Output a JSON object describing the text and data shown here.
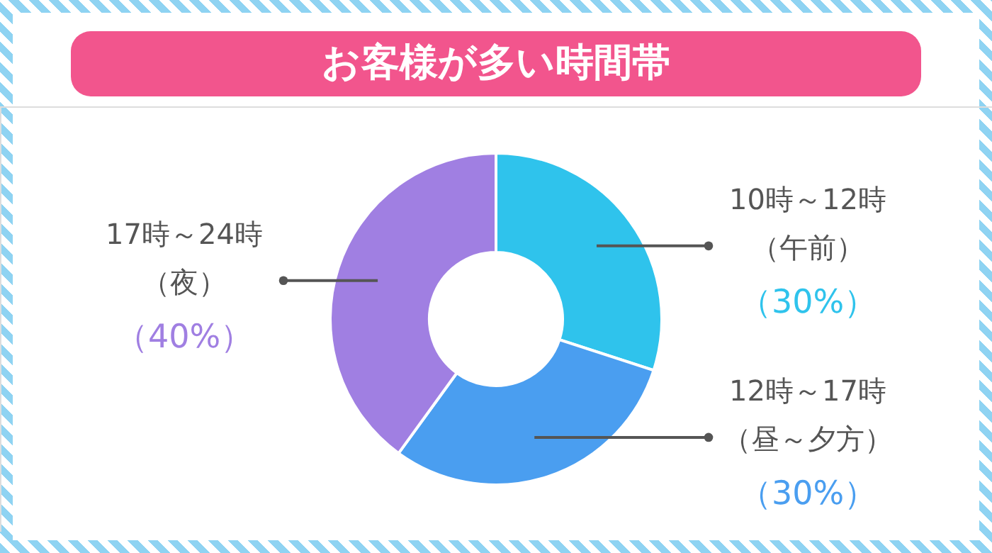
{
  "chart_data": {
    "type": "donut",
    "title": "お客様が多い時間帯",
    "categories": [
      "10時～12時（午前）",
      "12時～17時（昼～夕方）",
      "17時～24時（夜）"
    ],
    "values": [
      30,
      30,
      40
    ],
    "colors": [
      "#2fc3ec",
      "#4a9ef0",
      "#a07fe2"
    ],
    "value_labels": [
      "（30%）",
      "（30%）",
      "（40%）"
    ]
  }
}
